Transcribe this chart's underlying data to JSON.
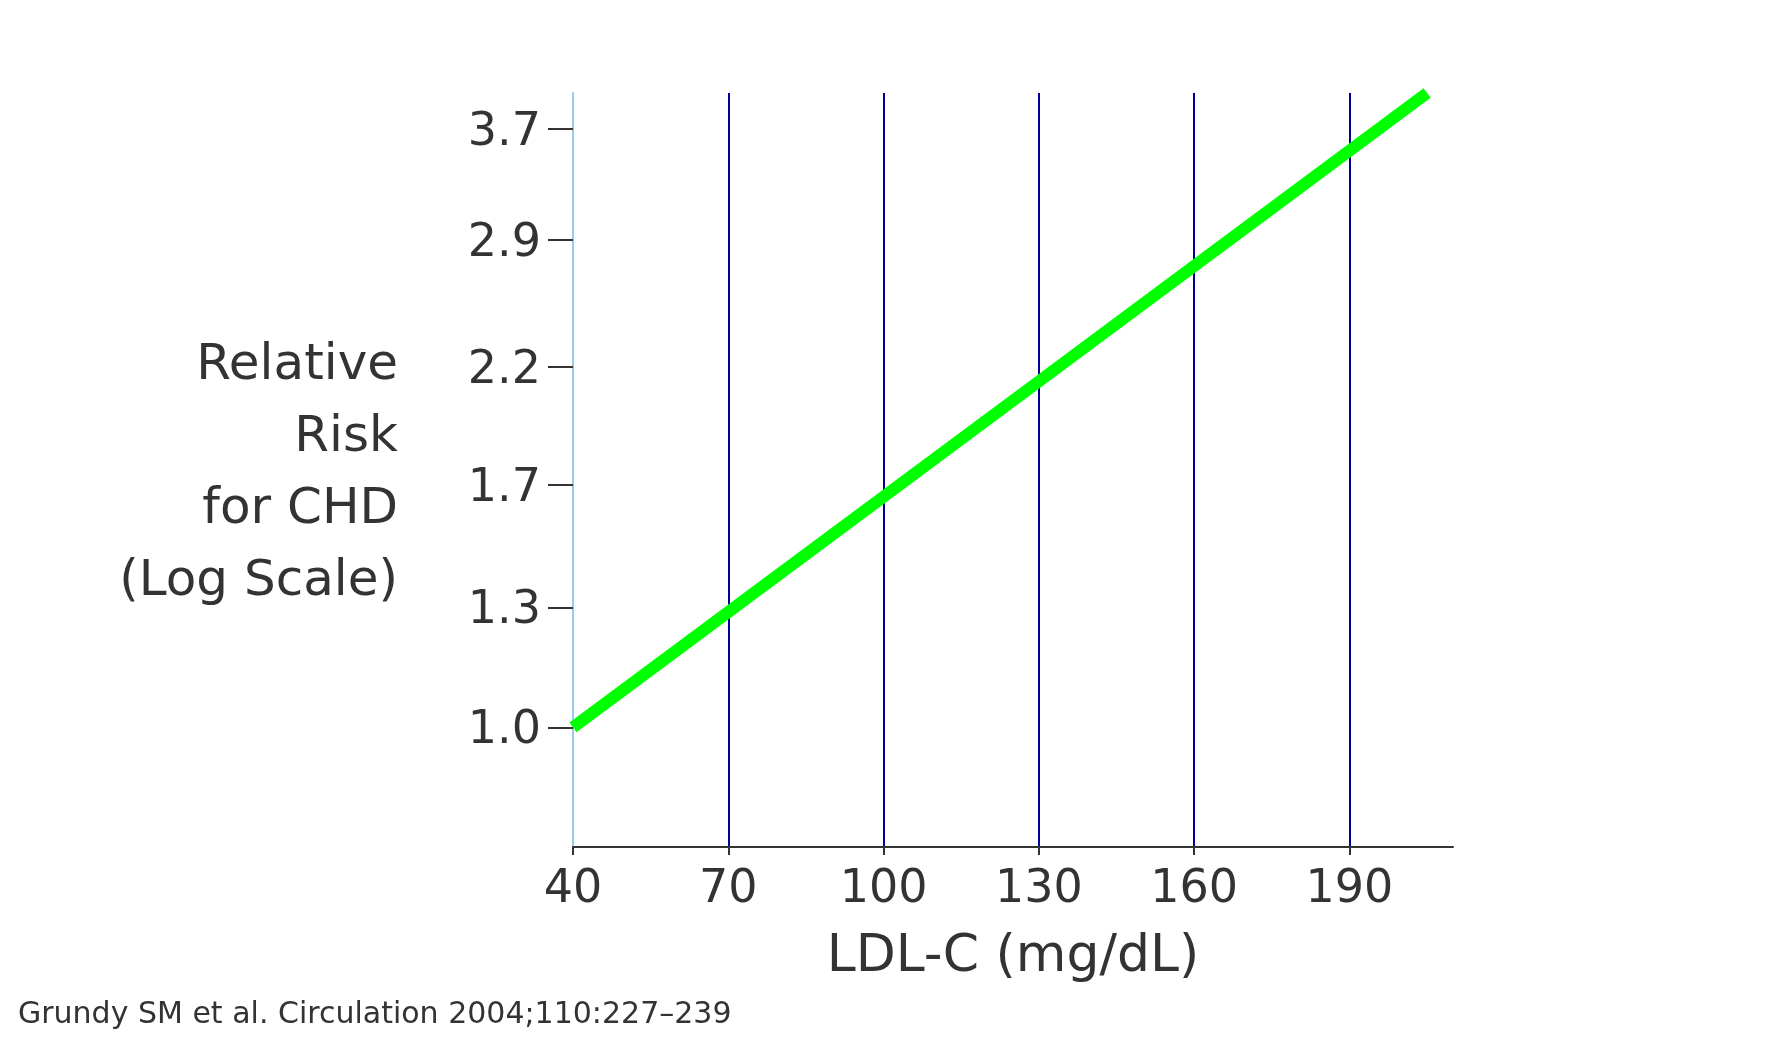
{
  "chart_data": {
    "type": "line",
    "xlabel": "LDL-C (mg/dL)",
    "ylabel": "Relative\nRisk\nfor CHD\n(Log Scale)",
    "x": [
      40,
      205
    ],
    "series": [
      {
        "color": "#00ff00",
        "values": [
          1.0,
          4.0
        ]
      }
    ],
    "xlim": [
      40,
      210
    ],
    "xticks": [
      40,
      70,
      100,
      130,
      160,
      190
    ],
    "ylim": [
      0.77,
      4.0
    ],
    "yticks": [
      {
        "value": 1,
        "label": "1.0"
      },
      1.3,
      1.7,
      2.2,
      2.9,
      3.7
    ],
    "log": "y",
    "grid": "x",
    "marker": "none",
    "line_style": "solid",
    "annotations": [
      "Grundy SM et al. Circulation 2004;110:227–239"
    ]
  }
}
